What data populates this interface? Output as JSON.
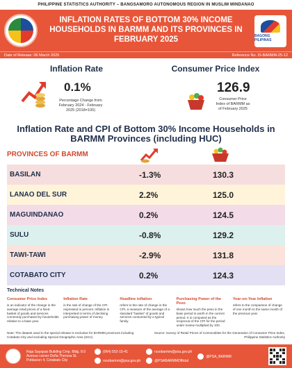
{
  "header": {
    "agency": "PHILIPPINE STATISTICS AUTHORITY – BANGSAMORO AUTONOMOUS REGION IN MUSLIM MINDANAO",
    "title": "INFLATION RATES OF BOTTOM 30% INCOME HOUSEHOLDS IN BARMM AND ITS PROVINCES IN FEBRUARY 2025",
    "bagong_pilipinas": "BAGONG PILIPINAS",
    "date_of_release": "Date of Release: 06 March 2025",
    "reference_no": "Reference No. IS-BARMM-25-12"
  },
  "kpi": {
    "inflation_title": "Inflation Rate",
    "inflation_value": "0.1%",
    "inflation_desc": "Percentage Change from February 2024 - February 2025 (2018=100)",
    "cpi_title": "Consumer Price Index",
    "cpi_value": "126.9",
    "cpi_desc": "Consumer Price Index of BARMM as of February 2025"
  },
  "table": {
    "title": "Inflation Rate and CPI of Bottom 30% Income Households in BARMM Provinces (including HUC)",
    "col_province": "PROVINCES OF BARMM",
    "rows": [
      {
        "name": "BASILAN",
        "inflation": "-1.3%",
        "cpi": "130.3"
      },
      {
        "name": "LANAO DEL SUR",
        "inflation": "2.2%",
        "cpi": "125.0"
      },
      {
        "name": "MAGUINDANAO",
        "inflation": "0.2%",
        "cpi": "124.5"
      },
      {
        "name": "SULU",
        "inflation": "-0.8%",
        "cpi": "129.2"
      },
      {
        "name": "TAWI-TAWI",
        "inflation": "-2.9%",
        "cpi": "131.8"
      },
      {
        "name": "COTABATO CITY",
        "inflation": "0.2%",
        "cpi": "124.3"
      }
    ],
    "row_colors": [
      "#f6dede",
      "#fff4da",
      "#f3dbe7",
      "#dcf0ee",
      "#fbe3db",
      "#e2e0f2"
    ]
  },
  "notes": {
    "heading": "Technical Notes",
    "defs": [
      {
        "title": "Consumer Price Index",
        "text": "is an indicator of the change in the average retail prices of a fixed basket of goods and services commonly purchased by households relative to a base year."
      },
      {
        "title": "Inflation Rate",
        "text": "is the rate of change of the CPI expressed in percent. Inflation is interpreted in terms of declining purchasing power of money."
      },
      {
        "title": "Headline inflation",
        "text": "refers to the rate of change in the CPI, a measure of the average of a standard \"basket\" of goods and services consumed by a typical family."
      },
      {
        "title": "Purchasing Power of the Peso",
        "text": "shows how much the peso in the base period is worth in the current period. It is computed as the reciprocal of the CPI for the period under review multiplied by 100."
      },
      {
        "title": "Year-on-Year Inflation",
        "text": "refers to the comparison of change of one month to the same month of the previous year."
      }
    ],
    "note": "Note: The dataset used in the special release is exclusive for BARMM provinces including Cotabato City and excluding Special Geographic Area (SGA)",
    "source": "Source: Survey of Retail Prices of Commodities for the Generation of Consumer Price Index, Philippine Statistics Authority"
  },
  "footer": {
    "address": "Raja Sayapao Building Cmp. Bldg. 8.0 Avenue corner Doña Theresa St. Poblacion 4, Cotabato City",
    "phone": "(064) 552-15-41",
    "email": "rssobarmm@psa.gov.ph",
    "email2": "rssobarmm@psa.gov.ph",
    "fb": "@PSABARMMOfficial",
    "twitter": "@PSA_BARMM"
  }
}
